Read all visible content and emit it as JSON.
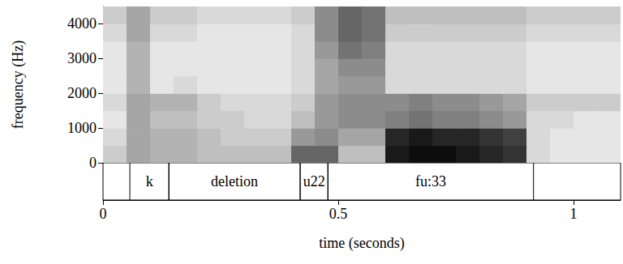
{
  "chart_data": {
    "type": "spectrogram",
    "xlabel": "time (seconds)",
    "ylabel": "frequency (Hz)",
    "xlim": [
      0,
      1.1
    ],
    "xticks": [
      0,
      0.5,
      1
    ],
    "ylim": [
      0,
      4500
    ],
    "yticks": [
      0,
      1000,
      2000,
      3000,
      4000
    ],
    "spectrogram": {
      "time_edges": [
        0,
        0.05,
        0.1,
        0.15,
        0.2,
        0.25,
        0.3,
        0.35,
        0.4,
        0.45,
        0.5,
        0.55,
        0.6,
        0.65,
        0.7,
        0.75,
        0.8,
        0.85,
        0.9,
        0.95,
        1.0,
        1.05,
        1.1
      ],
      "frequency_edges": [
        0,
        500,
        1000,
        1500,
        2000,
        2500,
        3000,
        3500,
        4000,
        4500
      ],
      "intensity": [
        [
          0.2,
          0.35,
          0.3,
          0.3,
          0.25,
          0.25,
          0.25,
          0.25,
          0.6,
          0.6,
          0.25,
          0.25,
          0.9,
          0.95,
          0.95,
          0.9,
          0.85,
          0.8,
          0.15,
          0.1,
          0.1,
          0.1
        ],
        [
          0.15,
          0.35,
          0.3,
          0.3,
          0.25,
          0.2,
          0.2,
          0.2,
          0.4,
          0.45,
          0.35,
          0.35,
          0.85,
          0.9,
          0.85,
          0.85,
          0.8,
          0.75,
          0.15,
          0.1,
          0.1,
          0.1
        ],
        [
          0.1,
          0.35,
          0.25,
          0.25,
          0.2,
          0.2,
          0.15,
          0.15,
          0.25,
          0.4,
          0.45,
          0.45,
          0.5,
          0.55,
          0.5,
          0.5,
          0.45,
          0.4,
          0.15,
          0.15,
          0.1,
          0.1
        ],
        [
          0.15,
          0.35,
          0.3,
          0.3,
          0.2,
          0.15,
          0.15,
          0.15,
          0.2,
          0.4,
          0.45,
          0.45,
          0.45,
          0.5,
          0.45,
          0.45,
          0.4,
          0.35,
          0.2,
          0.2,
          0.2,
          0.2
        ],
        [
          0.1,
          0.3,
          0.1,
          0.15,
          0.1,
          0.1,
          0.1,
          0.1,
          0.15,
          0.35,
          0.4,
          0.4,
          0.15,
          0.15,
          0.15,
          0.15,
          0.15,
          0.15,
          0.1,
          0.1,
          0.1,
          0.1
        ],
        [
          0.1,
          0.3,
          0.1,
          0.1,
          0.1,
          0.1,
          0.1,
          0.1,
          0.15,
          0.35,
          0.45,
          0.45,
          0.15,
          0.15,
          0.15,
          0.15,
          0.15,
          0.15,
          0.1,
          0.1,
          0.1,
          0.1
        ],
        [
          0.1,
          0.3,
          0.1,
          0.1,
          0.1,
          0.1,
          0.1,
          0.1,
          0.15,
          0.4,
          0.55,
          0.5,
          0.15,
          0.15,
          0.15,
          0.15,
          0.15,
          0.15,
          0.1,
          0.1,
          0.1,
          0.1
        ],
        [
          0.15,
          0.35,
          0.15,
          0.15,
          0.1,
          0.1,
          0.1,
          0.1,
          0.15,
          0.45,
          0.6,
          0.55,
          0.2,
          0.2,
          0.2,
          0.2,
          0.2,
          0.2,
          0.15,
          0.15,
          0.15,
          0.15
        ],
        [
          0.2,
          0.35,
          0.2,
          0.2,
          0.15,
          0.15,
          0.15,
          0.15,
          0.2,
          0.45,
          0.6,
          0.55,
          0.25,
          0.25,
          0.25,
          0.25,
          0.25,
          0.25,
          0.2,
          0.2,
          0.2,
          0.2
        ]
      ]
    },
    "tier": {
      "intervals": [
        {
          "start": 0.057,
          "end": 0.14,
          "label": "k"
        },
        {
          "start": 0.14,
          "end": 0.419,
          "label": "deletion"
        },
        {
          "start": 0.419,
          "end": 0.478,
          "label": "u22"
        },
        {
          "start": 0.478,
          "end": 0.915,
          "label": "fu:33"
        }
      ]
    }
  }
}
